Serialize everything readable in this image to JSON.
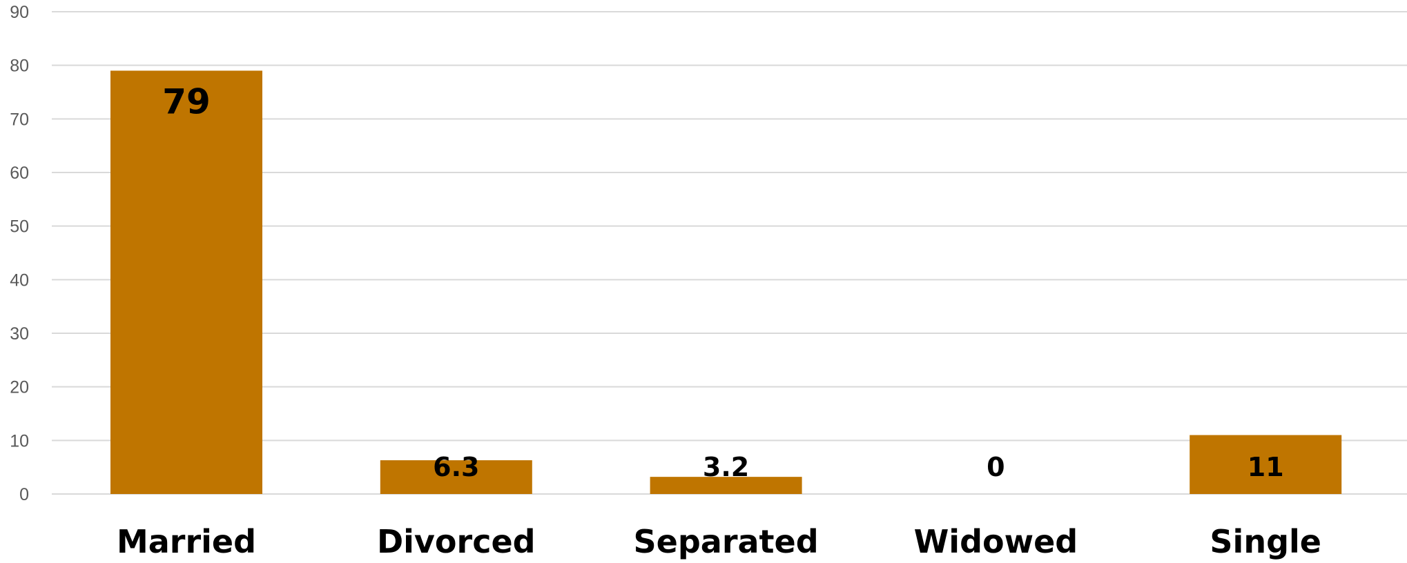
{
  "chart_data": {
    "type": "bar",
    "title": "",
    "xlabel": "",
    "ylabel": "",
    "categories": [
      "Married",
      "Divorced",
      "Separated",
      "Widowed",
      "Single"
    ],
    "values": [
      79,
      6.3,
      3.2,
      0,
      11
    ],
    "data_labels": [
      "79",
      "6.3",
      "3.2",
      "0",
      "11"
    ],
    "ylim": [
      0,
      90
    ],
    "y_ticks": [
      0,
      10,
      20,
      30,
      40,
      50,
      60,
      70,
      80,
      90
    ],
    "grid": true,
    "legend": "none",
    "colors": {
      "bar": "#bf7500",
      "grid": "#d9d9d9",
      "tick_text": "#595959",
      "label_text": "#000000"
    }
  }
}
